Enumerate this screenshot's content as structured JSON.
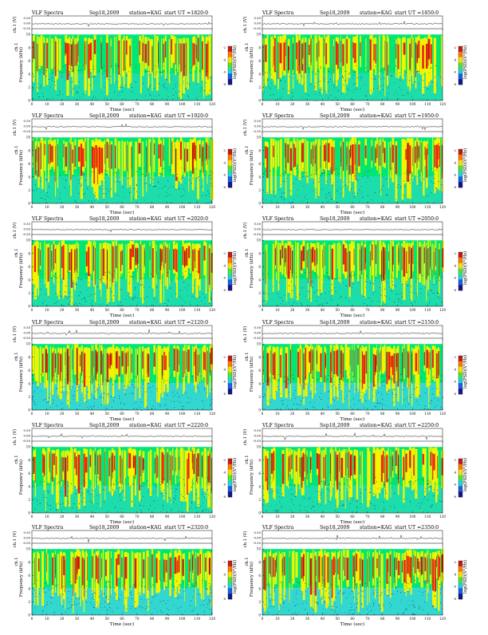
{
  "page": {
    "header_left": "VLF Spectra",
    "date": "Sep18,2009",
    "station_label": "station=KAG",
    "ut_prefix": "start  UT =",
    "waveform_ylabel": "ch.1 (V)",
    "spectrogram_ylabel": "ch.1",
    "freq_label": "Frequency  (kHz)",
    "xlabel": "Time  (sec)",
    "colorbar_label": "log(PSD)(V²/Hz)"
  },
  "panels": [
    {
      "start_ut": "1820:0"
    },
    {
      "start_ut": "1850:0"
    },
    {
      "start_ut": "1920:0"
    },
    {
      "start_ut": "1950:0"
    },
    {
      "start_ut": "2020:0"
    },
    {
      "start_ut": "2050:0"
    },
    {
      "start_ut": "2120:0"
    },
    {
      "start_ut": "2150:0"
    },
    {
      "start_ut": "2220:0"
    },
    {
      "start_ut": "2250:0"
    },
    {
      "start_ut": "2320:0"
    },
    {
      "start_ut": "2350:0"
    }
  ],
  "chart_data": {
    "type": "heatmap",
    "xlabel": "Time  (sec)",
    "ylabel": "Frequency  (kHz)",
    "xlim": [
      0,
      120
    ],
    "ylim": [
      0,
      10
    ],
    "x_ticks": [
      "0",
      "10",
      "20",
      "30",
      "40",
      "50",
      "60",
      "70",
      "80",
      "90",
      "100",
      "110",
      "120"
    ],
    "y_ticks": [
      "0",
      "2",
      "4",
      "6",
      "8",
      "10"
    ],
    "waveform_ticks": [
      "0.50",
      "0.00",
      "-0.50"
    ],
    "colorbar_ticks": [
      "-2",
      "-4",
      "-6",
      "-8"
    ],
    "colors": {
      "background": "#00e676",
      "cyan": "#35d7d5",
      "yellow": "#f4f400",
      "red": "#e8200c",
      "darkred": "#6a1400",
      "blue": "#1a4fd6",
      "colorbar": [
        "#c51b10",
        "#ff7a00",
        "#ffe100",
        "#49ea2a",
        "#1fd6d6",
        "#1662e8",
        "#15158c"
      ]
    },
    "noise_levels": [
      2,
      2,
      2,
      2,
      2,
      2,
      3,
      3,
      2,
      2,
      3,
      3
    ]
  }
}
